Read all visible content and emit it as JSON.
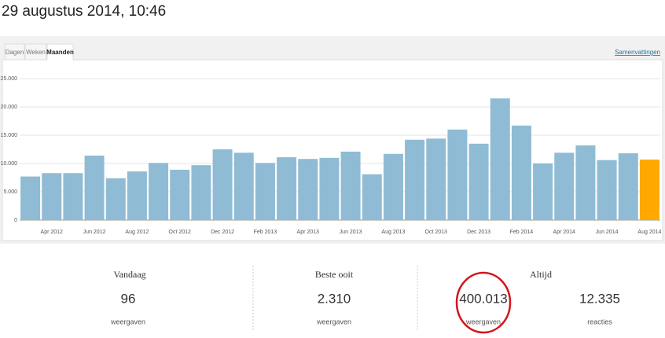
{
  "header": {
    "title": "29 augustus 2014, 10:46"
  },
  "tabs": [
    "Dagen",
    "Weken",
    "Maanden"
  ],
  "link": "Samenvattingen",
  "chart_data": {
    "type": "bar",
    "categories": [
      null,
      "Apr 2012",
      null,
      "Jun 2012",
      null,
      "Aug 2012",
      null,
      "Oct 2012",
      null,
      "Dec 2012",
      null,
      "Feb 2013",
      null,
      "Apr 2013",
      null,
      "Jun 2013",
      null,
      "Aug 2013",
      null,
      "Oct 2013",
      null,
      "Dec 2013",
      null,
      "Feb 2014",
      null,
      "Apr 2014",
      null,
      "Jun 2014",
      null,
      "Aug 2014"
    ],
    "values": [
      7700,
      8300,
      8300,
      11400,
      7400,
      8600,
      10100,
      8900,
      9700,
      12500,
      11900,
      10100,
      11100,
      10800,
      11000,
      12100,
      8100,
      11700,
      14200,
      14400,
      16000,
      13500,
      21500,
      16700,
      10000,
      11900,
      13200,
      10600,
      11800,
      10700
    ],
    "colors": [
      "#8fbcd4",
      "#8fbcd4",
      "#8fbcd4",
      "#8fbcd4",
      "#8fbcd4",
      "#8fbcd4",
      "#8fbcd4",
      "#8fbcd4",
      "#8fbcd4",
      "#8fbcd4",
      "#8fbcd4",
      "#8fbcd4",
      "#8fbcd4",
      "#8fbcd4",
      "#8fbcd4",
      "#8fbcd4",
      "#8fbcd4",
      "#8fbcd4",
      "#8fbcd4",
      "#8fbcd4",
      "#8fbcd4",
      "#8fbcd4",
      "#8fbcd4",
      "#8fbcd4",
      "#8fbcd4",
      "#8fbcd4",
      "#8fbcd4",
      "#8fbcd4",
      "#8fbcd4",
      "#ffa800"
    ],
    "ylim": [
      0,
      25000
    ],
    "yticks": [
      0,
      {
        "value": 5000,
        "label": "5.000"
      },
      {
        "value": 10000,
        "label": "10.000"
      },
      {
        "value": 15000,
        "label": "15.000"
      },
      {
        "value": 20000,
        "label": "20.000"
      },
      {
        "value": 25000,
        "label": "25.000"
      }
    ],
    "grid": true
  },
  "summary": [
    {
      "title": "Vandaag",
      "stats": [
        {
          "value": "96",
          "label": "weergaven"
        }
      ]
    },
    {
      "title": "Beste ooit",
      "stats": [
        {
          "value": "2.310",
          "label": "weergaven"
        }
      ]
    },
    {
      "title": "Altijd",
      "stats": [
        {
          "value": "400.013",
          "label": "weergaven"
        },
        {
          "value": "12.335",
          "label": "reacties"
        }
      ]
    }
  ]
}
